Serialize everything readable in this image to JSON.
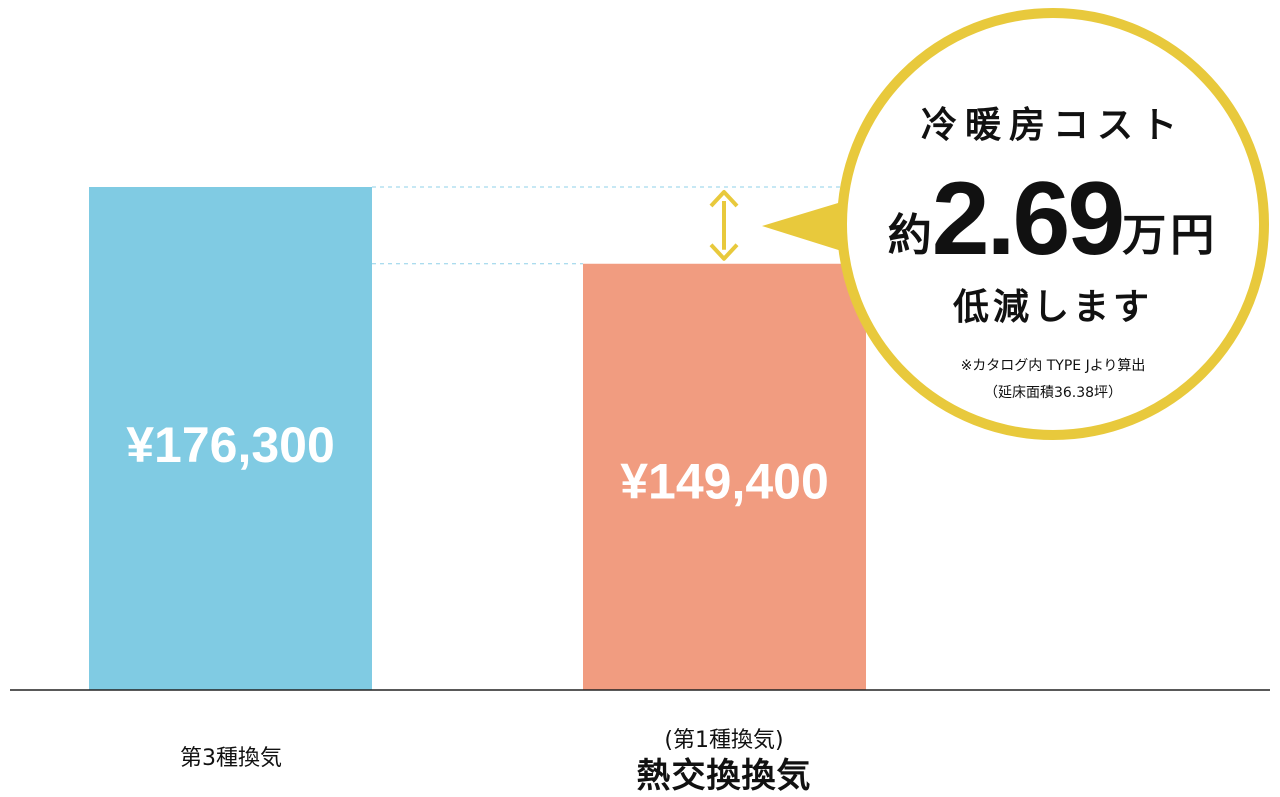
{
  "chart_data": {
    "type": "bar",
    "categories": [
      "第3種換気",
      "熱交換換気"
    ],
    "category_notes": [
      "",
      "(第1種換気)"
    ],
    "values": [
      176300,
      149400
    ],
    "value_labels": [
      "¥176,300",
      "¥149,400"
    ],
    "colors": [
      "#80cbe3",
      "#f19c80"
    ],
    "ylim": [
      0,
      176300
    ],
    "grid": false,
    "difference_marker_color": "#e8c93c",
    "guide_line_color": "#8fd0e8"
  },
  "callout": {
    "title": "冷暖房コスト",
    "prefix": "約",
    "value": "2.69",
    "unit": "万円",
    "verb": "低減します",
    "note": "※カタログ内 TYPE Jより算出",
    "note2": "（延床面積36.38坪）",
    "color": "#e8c93c"
  }
}
